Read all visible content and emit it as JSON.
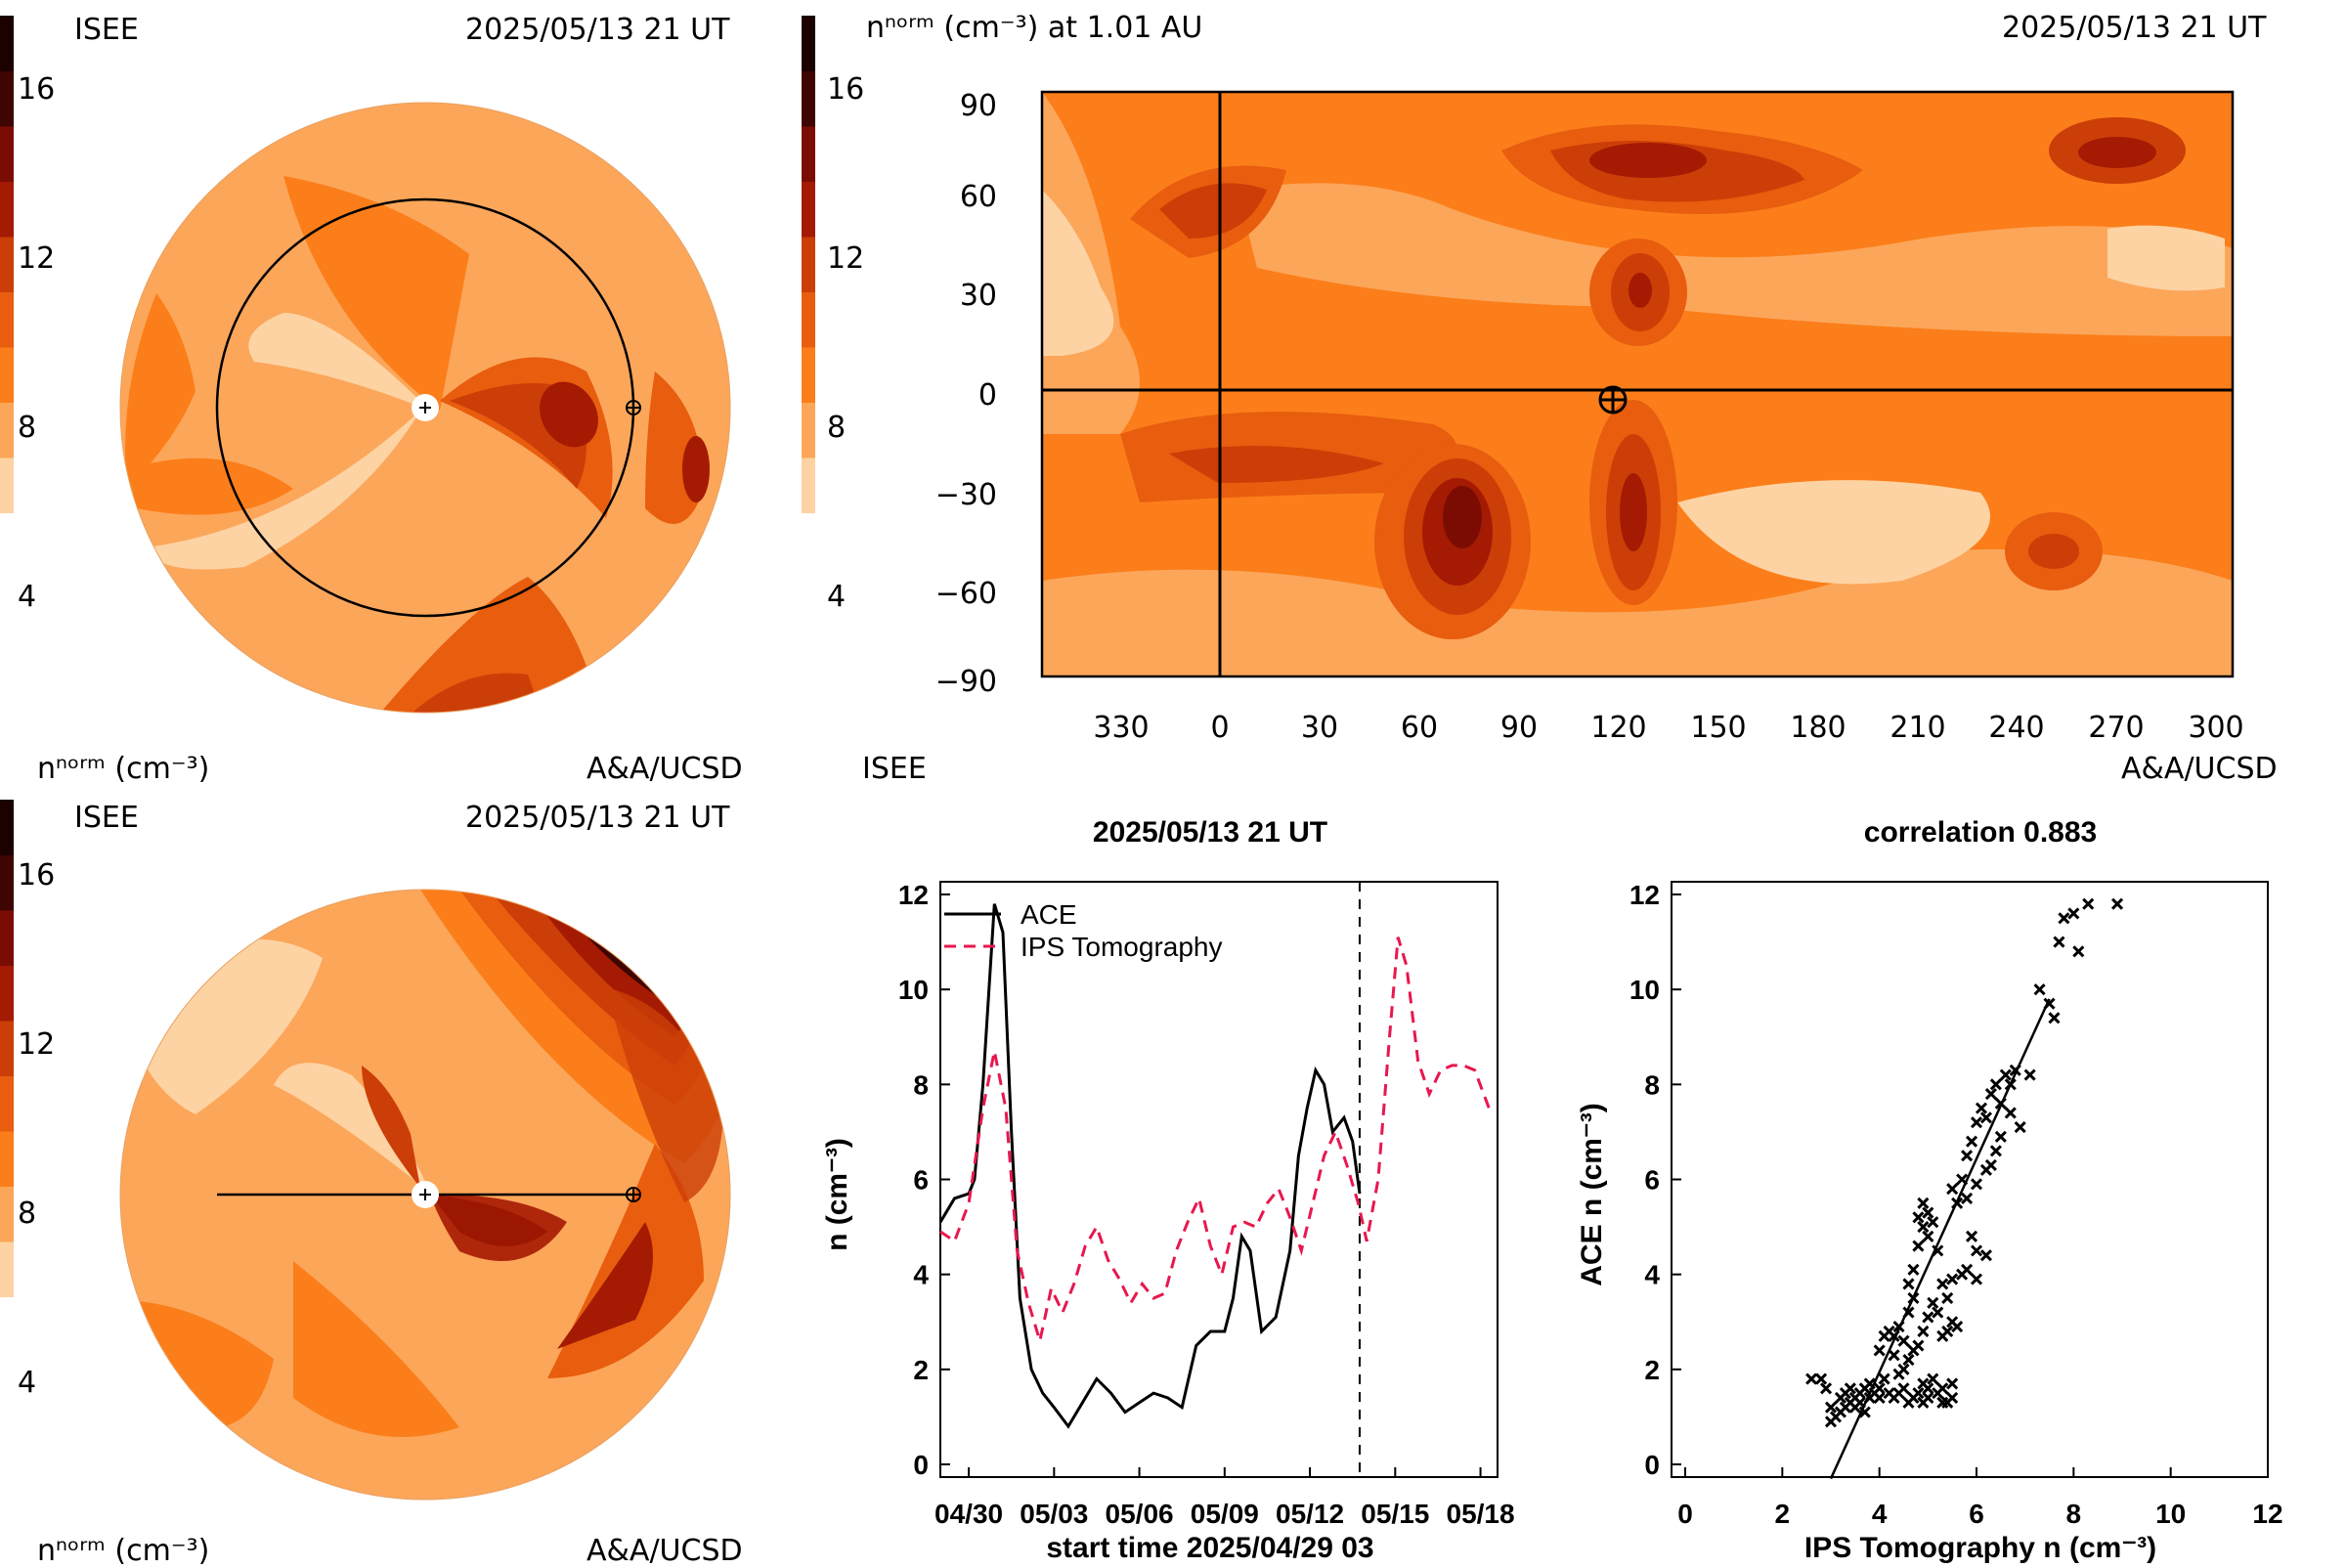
{
  "colors": {
    "scale": [
      "#fdd3a3",
      "#fca65a",
      "#fb7e1a",
      "#e85d0e",
      "#cc3e07",
      "#a51a02",
      "#7a0c03",
      "#3e0502",
      "#1b0200"
    ],
    "ace_line": "#000000",
    "ips_line": "#e8174d"
  },
  "top_left": {
    "label_left": "ISEE",
    "date": "2025/05/13 21 UT",
    "colorbar_ticks": [
      "16",
      "12",
      "8",
      "4"
    ],
    "unit": "nⁿᵒʳᵐ (cm⁻³)",
    "credit": "A&A/UCSD"
  },
  "bottom_left": {
    "label_left": "ISEE",
    "date": "2025/05/13 21 UT",
    "colorbar_ticks": [
      "16",
      "12",
      "8",
      "4"
    ],
    "unit": "nⁿᵒʳᵐ (cm⁻³)",
    "credit": "A&A/UCSD"
  },
  "top_right": {
    "title": "nⁿᵒʳᵐ (cm⁻³) at 1.01 AU",
    "date": "2025/05/13 21 UT",
    "colorbar_ticks": [
      "16",
      "12",
      "8",
      "4"
    ],
    "label_bottom_left": "ISEE",
    "credit": "A&A/UCSD",
    "y_ticks": [
      "90",
      "60",
      "30",
      "0",
      "−30",
      "−60",
      "−90"
    ],
    "x_ticks": [
      "330",
      "0",
      "30",
      "60",
      "90",
      "120",
      "150",
      "180",
      "210",
      "240",
      "270",
      "300"
    ]
  },
  "chart_data": [
    {
      "type": "line",
      "title": "2025/05/13 21 UT",
      "xlabel": "start time 2025/04/29 03",
      "ylabel": "n (cm⁻³)",
      "x_tick_labels": [
        "04/30",
        "05/03",
        "05/06",
        "05/09",
        "05/12",
        "05/15",
        "05/18"
      ],
      "x_tick_days": [
        1,
        4,
        7,
        10,
        13,
        16,
        19
      ],
      "xlim": [
        0,
        19.6
      ],
      "ylim": [
        0,
        12
      ],
      "y_ticks": [
        "0",
        "2",
        "4",
        "6",
        "8",
        "10",
        "12"
      ],
      "marker_day": 14.75,
      "legend": [
        "ACE",
        "IPS Tomography"
      ],
      "series": [
        {
          "name": "ACE",
          "x": [
            0,
            0.5,
            1.0,
            1.2,
            1.5,
            1.9,
            2.2,
            2.5,
            2.8,
            3.2,
            3.6,
            4.0,
            4.5,
            5.0,
            5.5,
            6.0,
            6.5,
            7.0,
            7.5,
            8.0,
            8.5,
            9.0,
            9.5,
            10.0,
            10.3,
            10.6,
            10.9,
            11.3,
            11.8,
            12.3,
            12.6,
            12.9,
            13.2,
            13.5,
            13.8,
            14.2,
            14.5,
            14.75
          ],
          "values": [
            5.1,
            5.6,
            5.7,
            6.0,
            8.0,
            11.8,
            11.2,
            7.0,
            3.5,
            2.0,
            1.5,
            1.2,
            0.8,
            1.3,
            1.8,
            1.5,
            1.1,
            1.3,
            1.5,
            1.4,
            1.2,
            2.5,
            2.8,
            2.8,
            3.5,
            4.8,
            4.5,
            2.8,
            3.1,
            4.5,
            6.5,
            7.5,
            8.3,
            8.0,
            7.0,
            7.3,
            6.8,
            5.7
          ]
        },
        {
          "name": "IPS Tomography",
          "x": [
            0,
            0.5,
            1.0,
            1.5,
            1.9,
            2.3,
            2.7,
            3.1,
            3.5,
            3.9,
            4.3,
            4.7,
            5.1,
            5.5,
            5.9,
            6.3,
            6.7,
            7.1,
            7.5,
            7.9,
            8.3,
            8.7,
            9.1,
            9.5,
            9.9,
            10.3,
            10.7,
            11.1,
            11.5,
            11.9,
            12.3,
            12.7,
            13.1,
            13.5,
            13.9,
            14.3,
            14.7,
            15.0,
            15.4,
            15.8,
            16.1,
            16.4,
            16.8,
            17.2,
            17.6,
            18.0,
            18.4,
            18.8,
            19.3
          ],
          "values": [
            4.9,
            4.7,
            5.5,
            7.5,
            8.7,
            7.5,
            4.5,
            3.4,
            2.6,
            3.7,
            3.2,
            3.8,
            4.6,
            5.0,
            4.3,
            3.9,
            3.4,
            3.8,
            3.5,
            3.6,
            4.5,
            5.1,
            5.6,
            4.6,
            4.0,
            5.0,
            5.1,
            5.0,
            5.5,
            5.8,
            5.2,
            4.5,
            5.5,
            6.5,
            7.0,
            6.3,
            5.5,
            4.7,
            6.0,
            9.0,
            11.1,
            10.5,
            8.5,
            7.8,
            8.3,
            8.4,
            8.4,
            8.3,
            7.5
          ]
        }
      ]
    },
    {
      "type": "scatter",
      "title": "correlation 0.883",
      "xlabel": "IPS Tomography n (cm⁻³)",
      "ylabel": "ACE n (cm⁻³)",
      "xlim": [
        0,
        12
      ],
      "ylim": [
        0,
        12
      ],
      "x_ticks": [
        "0",
        "2",
        "4",
        "6",
        "8",
        "10",
        "12"
      ],
      "y_ticks": [
        "0",
        "2",
        "4",
        "6",
        "8",
        "10",
        "12"
      ],
      "fit_line": [
        [
          3.0,
          -0.3
        ],
        [
          7.5,
          9.8
        ]
      ],
      "points": [
        [
          2.6,
          1.8
        ],
        [
          2.8,
          1.8
        ],
        [
          2.9,
          1.6
        ],
        [
          3.0,
          0.9
        ],
        [
          3.1,
          1.0
        ],
        [
          3.2,
          1.1
        ],
        [
          3.3,
          1.2
        ],
        [
          3.3,
          1.5
        ],
        [
          3.4,
          1.3
        ],
        [
          3.5,
          1.4
        ],
        [
          3.5,
          1.2
        ],
        [
          3.6,
          1.5
        ],
        [
          3.6,
          1.3
        ],
        [
          3.7,
          1.6
        ],
        [
          3.8,
          1.4
        ],
        [
          3.8,
          1.7
        ],
        [
          3.9,
          1.5
        ],
        [
          4.0,
          1.4
        ],
        [
          4.0,
          1.6
        ],
        [
          4.1,
          1.8
        ],
        [
          4.2,
          1.5
        ],
        [
          4.3,
          1.4
        ],
        [
          4.4,
          1.5
        ],
        [
          4.5,
          1.6
        ],
        [
          4.6,
          1.3
        ],
        [
          4.7,
          1.4
        ],
        [
          4.8,
          1.5
        ],
        [
          4.9,
          1.3
        ],
        [
          5.0,
          1.4
        ],
        [
          5.2,
          1.5
        ],
        [
          5.3,
          1.3
        ],
        [
          5.4,
          1.3
        ],
        [
          5.5,
          1.4
        ],
        [
          5.5,
          1.7
        ],
        [
          5.3,
          1.6
        ],
        [
          4.1,
          2.7
        ],
        [
          4.2,
          2.8
        ],
        [
          4.3,
          2.7
        ],
        [
          4.4,
          2.9
        ],
        [
          4.5,
          2.6
        ],
        [
          4.6,
          3.2
        ],
        [
          4.7,
          3.5
        ],
        [
          4.6,
          3.8
        ],
        [
          4.7,
          4.1
        ],
        [
          4.8,
          4.6
        ],
        [
          4.9,
          5.0
        ],
        [
          4.9,
          5.5
        ],
        [
          4.8,
          5.2
        ],
        [
          5.0,
          5.3
        ],
        [
          5.1,
          5.1
        ],
        [
          5.0,
          4.8
        ],
        [
          5.2,
          4.5
        ],
        [
          5.3,
          3.8
        ],
        [
          5.4,
          3.5
        ],
        [
          5.5,
          3.0
        ],
        [
          5.4,
          2.8
        ],
        [
          5.3,
          2.7
        ],
        [
          5.6,
          2.9
        ],
        [
          5.2,
          3.2
        ],
        [
          5.1,
          3.4
        ],
        [
          5.0,
          3.1
        ],
        [
          4.9,
          2.8
        ],
        [
          4.8,
          2.5
        ],
        [
          4.7,
          2.4
        ],
        [
          4.6,
          2.2
        ],
        [
          5.5,
          5.8
        ],
        [
          5.6,
          5.5
        ],
        [
          5.7,
          6.0
        ],
        [
          5.8,
          6.5
        ],
        [
          5.9,
          6.8
        ],
        [
          6.0,
          7.2
        ],
        [
          6.1,
          7.5
        ],
        [
          6.2,
          7.3
        ],
        [
          6.3,
          7.8
        ],
        [
          6.4,
          8.0
        ],
        [
          6.5,
          7.6
        ],
        [
          6.6,
          8.2
        ],
        [
          6.7,
          8.0
        ],
        [
          6.8,
          8.3
        ],
        [
          6.7,
          7.4
        ],
        [
          6.5,
          6.9
        ],
        [
          6.4,
          6.6
        ],
        [
          6.3,
          6.3
        ],
        [
          6.2,
          6.2
        ],
        [
          6.0,
          5.9
        ],
        [
          5.8,
          5.6
        ],
        [
          5.9,
          4.8
        ],
        [
          6.0,
          4.5
        ],
        [
          5.8,
          4.1
        ],
        [
          5.5,
          3.9
        ],
        [
          5.7,
          4.0
        ],
        [
          6.2,
          4.4
        ],
        [
          6.0,
          3.9
        ],
        [
          7.3,
          10.0
        ],
        [
          7.5,
          9.7
        ],
        [
          7.6,
          9.4
        ],
        [
          7.8,
          11.5
        ],
        [
          8.0,
          11.6
        ],
        [
          8.1,
          10.8
        ],
        [
          8.3,
          11.8
        ],
        [
          8.9,
          11.8
        ],
        [
          7.7,
          11.0
        ],
        [
          7.1,
          8.2
        ],
        [
          6.9,
          7.1
        ],
        [
          4.0,
          2.4
        ],
        [
          4.3,
          2.3
        ],
        [
          4.5,
          2.0
        ],
        [
          4.4,
          1.9
        ],
        [
          5.1,
          1.8
        ],
        [
          5.0,
          1.6
        ],
        [
          4.9,
          1.7
        ],
        [
          3.7,
          1.1
        ],
        [
          3.4,
          1.6
        ],
        [
          3.2,
          1.4
        ],
        [
          3.0,
          1.2
        ]
      ]
    }
  ]
}
